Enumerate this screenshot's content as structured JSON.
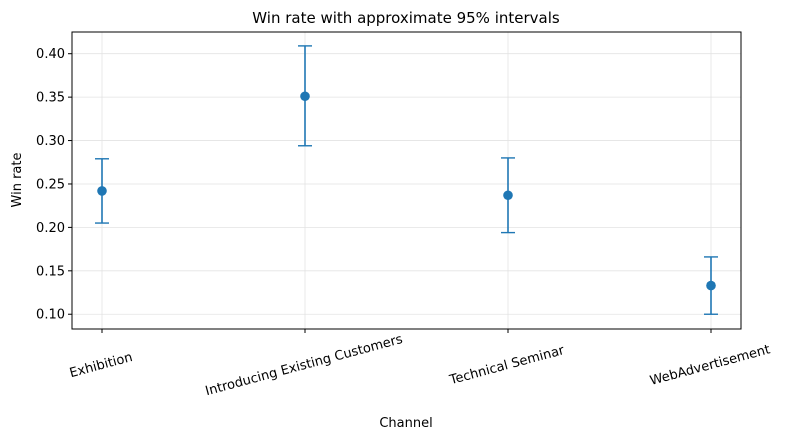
{
  "chart_data": {
    "type": "scatter",
    "title": "Win rate with approximate 95% intervals",
    "xlabel": "Channel",
    "ylabel": "Win rate",
    "categories": [
      "Exhibition",
      "Introducing Existing Customers",
      "Technical Seminar",
      "WebAdvertisement"
    ],
    "series": [
      {
        "values": [
          0.242,
          0.351,
          0.237,
          0.133
        ],
        "lower": [
          0.205,
          0.294,
          0.194,
          0.1
        ],
        "upper": [
          0.279,
          0.409,
          0.28,
          0.166
        ]
      }
    ],
    "ylim": [
      0.083,
      0.425
    ],
    "yticks": [
      0.1,
      0.15,
      0.2,
      0.25,
      0.3,
      0.35,
      0.4
    ],
    "ytick_labels": [
      "0.10",
      "0.15",
      "0.20",
      "0.25",
      "0.30",
      "0.35",
      "0.40"
    ],
    "grid": true,
    "color": "#1f77b4"
  }
}
